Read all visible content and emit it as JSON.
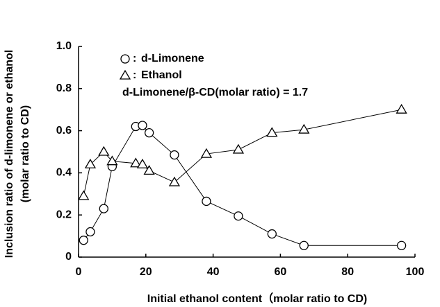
{
  "chart_data": {
    "type": "line",
    "xlabel": "Initial ethanol content（molar ratio to CD)",
    "ylabel": [
      "Inclusion ratio of d-limonene or ethanol",
      "(molar ratio to CD)"
    ],
    "annotation": "d-Limonene/β-CD(molar ratio) = 1.7",
    "legend_separator": ":",
    "xlim": [
      0,
      100
    ],
    "xticks": [
      0,
      20,
      40,
      60,
      80,
      100
    ],
    "ylim": [
      0,
      1.0
    ],
    "yticks": [
      0,
      0.2,
      0.4,
      0.6,
      0.8,
      {
        "value": 1.0,
        "label": "1.0"
      }
    ],
    "series": [
      {
        "name": "d-Limonene",
        "marker": "circle",
        "color": "#000000",
        "x": [
          1.5,
          3.5,
          7.5,
          10,
          17,
          19,
          21,
          28.5,
          38,
          47.5,
          57.5,
          67,
          96
        ],
        "values": [
          0.08,
          0.12,
          0.23,
          0.43,
          0.62,
          0.625,
          0.59,
          0.485,
          0.265,
          0.195,
          0.11,
          0.055,
          0.055
        ]
      },
      {
        "name": "Ethanol",
        "marker": "triangle",
        "color": "#000000",
        "x": [
          1.5,
          3.5,
          7.5,
          10,
          17,
          19,
          21,
          28.5,
          38,
          47.5,
          57.5,
          67,
          96
        ],
        "values": [
          0.29,
          0.44,
          0.5,
          0.455,
          0.445,
          0.44,
          0.41,
          0.355,
          0.49,
          0.51,
          0.59,
          0.605,
          0.7
        ]
      }
    ]
  }
}
